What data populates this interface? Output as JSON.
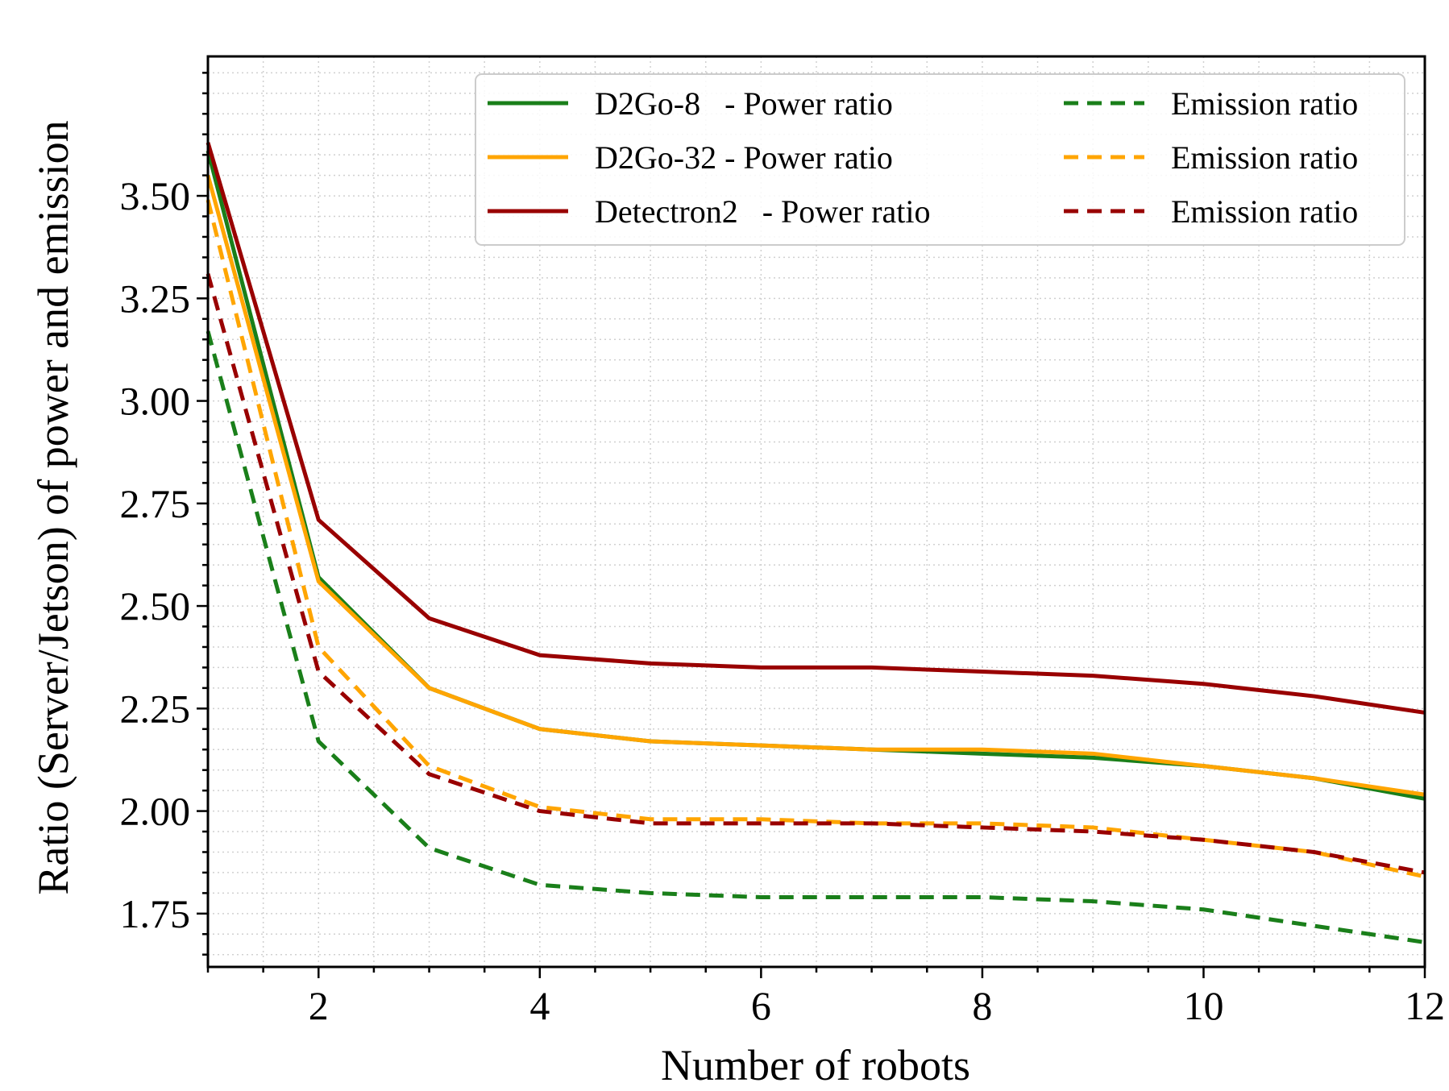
{
  "chart_data": {
    "type": "line",
    "xlabel": "Number of robots",
    "ylabel": "Ratio (Server/Jetson) of power and emission",
    "xlim": [
      1,
      12
    ],
    "ylim": [
      1.62,
      3.84
    ],
    "x_ticks": [
      2,
      4,
      6,
      8,
      10,
      12
    ],
    "x_tick_labels": [
      "2",
      "4",
      "6",
      "8",
      "10",
      "12"
    ],
    "y_ticks": [
      1.75,
      2.0,
      2.25,
      2.5,
      2.75,
      3.0,
      3.25,
      3.5
    ],
    "y_tick_labels": [
      "1.75",
      "2.00",
      "2.25",
      "2.50",
      "2.75",
      "3.00",
      "3.25",
      "3.50"
    ],
    "grid": "minor dotted",
    "legend_position": "top-right",
    "x": [
      1,
      2,
      3,
      4,
      5,
      6,
      7,
      8,
      9,
      10,
      11,
      12
    ],
    "series": [
      {
        "name": "D2Go-8   - Power ratio",
        "color": "#1a7f1a",
        "style": "solid",
        "values": [
          3.61,
          2.57,
          2.3,
          2.2,
          2.17,
          2.16,
          2.15,
          2.14,
          2.13,
          2.11,
          2.08,
          2.03
        ]
      },
      {
        "name": "D2Go-32 - Power ratio",
        "color": "#ffa500",
        "style": "solid",
        "values": [
          3.55,
          2.56,
          2.3,
          2.2,
          2.17,
          2.16,
          2.15,
          2.15,
          2.14,
          2.11,
          2.08,
          2.04
        ]
      },
      {
        "name": "Detectron2   - Power ratio",
        "color": "#990000",
        "style": "solid",
        "values": [
          3.63,
          2.71,
          2.47,
          2.38,
          2.36,
          2.35,
          2.35,
          2.34,
          2.33,
          2.31,
          2.28,
          2.24
        ]
      },
      {
        "name": "Emission ratio",
        "color": "#1a7f1a",
        "style": "dashed",
        "values": [
          3.17,
          2.17,
          1.91,
          1.82,
          1.8,
          1.79,
          1.79,
          1.79,
          1.78,
          1.76,
          1.72,
          1.68
        ]
      },
      {
        "name": "Emission ratio",
        "color": "#ffa500",
        "style": "dashed",
        "values": [
          3.49,
          2.4,
          2.11,
          2.01,
          1.98,
          1.98,
          1.97,
          1.97,
          1.96,
          1.93,
          1.9,
          1.84
        ]
      },
      {
        "name": "Emission ratio",
        "color": "#990000",
        "style": "dashed",
        "values": [
          3.31,
          2.34,
          2.09,
          2.0,
          1.97,
          1.97,
          1.97,
          1.96,
          1.95,
          1.93,
          1.9,
          1.85
        ]
      }
    ],
    "legend_columns": [
      [
        "D2Go-8   - Power ratio",
        "D2Go-32 - Power ratio",
        "Detectron2   - Power ratio"
      ],
      [
        "Emission ratio",
        "Emission ratio",
        "Emission ratio"
      ]
    ]
  }
}
